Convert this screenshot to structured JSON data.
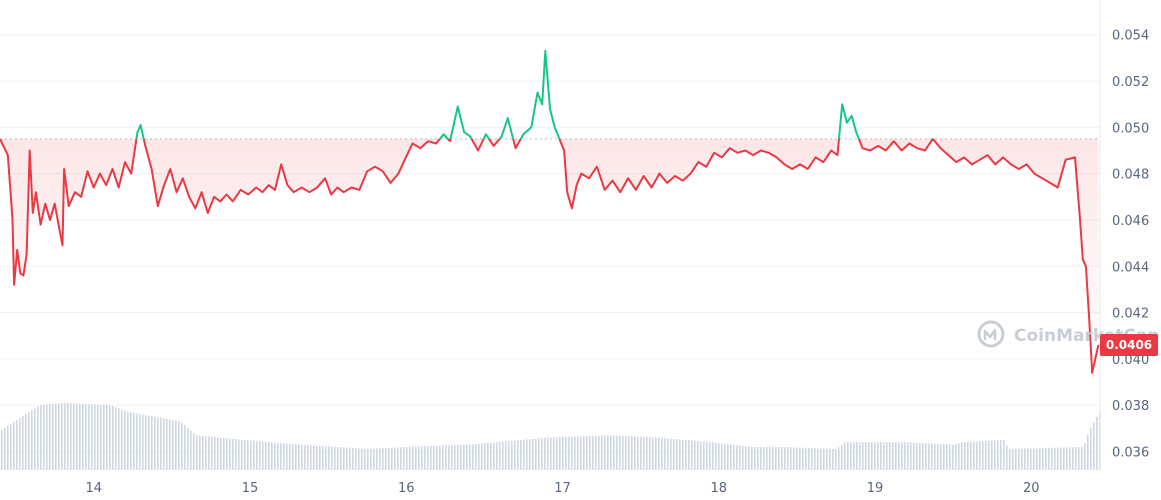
{
  "chart_data": {
    "type": "line",
    "title": "",
    "xlabel": "",
    "ylabel": "",
    "x_tick_labels": [
      "14",
      "15",
      "16",
      "17",
      "18",
      "19",
      "20"
    ],
    "y_tick_labels": [
      "0.054",
      "0.052",
      "0.050",
      "0.048",
      "0.046",
      "0.044",
      "0.042",
      "0.040",
      "0.038",
      "0.036"
    ],
    "ylim": [
      0.0352,
      0.0555
    ],
    "xlim": [
      13.4,
      20.44
    ],
    "reference_price": 0.0495,
    "current_price_label": "0.0406",
    "colors": {
      "below": "#ea3943",
      "above": "#16c784",
      "volume": "#cfd6e4",
      "grid": "#eff2f5"
    },
    "series": [
      {
        "values": [
          [
            13.4,
            0.0495
          ],
          [
            13.45,
            0.0488
          ],
          [
            13.47,
            0.047
          ],
          [
            13.48,
            0.046
          ],
          [
            13.49,
            0.0432
          ],
          [
            13.51,
            0.0447
          ],
          [
            13.53,
            0.0437
          ],
          [
            13.55,
            0.0436
          ],
          [
            13.57,
            0.0445
          ],
          [
            13.59,
            0.049
          ],
          [
            13.61,
            0.0463
          ],
          [
            13.63,
            0.0472
          ],
          [
            13.66,
            0.0458
          ],
          [
            13.69,
            0.0467
          ],
          [
            13.72,
            0.046
          ],
          [
            13.75,
            0.0467
          ],
          [
            13.78,
            0.0456
          ],
          [
            13.8,
            0.0449
          ],
          [
            13.81,
            0.0482
          ],
          [
            13.84,
            0.0466
          ],
          [
            13.88,
            0.0472
          ],
          [
            13.92,
            0.047
          ],
          [
            13.96,
            0.0481
          ],
          [
            14.0,
            0.0474
          ],
          [
            14.04,
            0.048
          ],
          [
            14.08,
            0.0475
          ],
          [
            14.12,
            0.0482
          ],
          [
            14.16,
            0.0474
          ],
          [
            14.2,
            0.0485
          ],
          [
            14.24,
            0.048
          ],
          [
            14.28,
            0.0498
          ],
          [
            14.3,
            0.0501
          ],
          [
            14.33,
            0.0492
          ],
          [
            14.37,
            0.0482
          ],
          [
            14.41,
            0.0466
          ],
          [
            14.45,
            0.0475
          ],
          [
            14.49,
            0.0482
          ],
          [
            14.53,
            0.0472
          ],
          [
            14.57,
            0.0478
          ],
          [
            14.61,
            0.047
          ],
          [
            14.65,
            0.0465
          ],
          [
            14.69,
            0.0472
          ],
          [
            14.73,
            0.0463
          ],
          [
            14.77,
            0.047
          ],
          [
            14.81,
            0.0468
          ],
          [
            14.85,
            0.0471
          ],
          [
            14.89,
            0.0468
          ],
          [
            14.94,
            0.0473
          ],
          [
            14.99,
            0.0471
          ],
          [
            15.04,
            0.0474
          ],
          [
            15.08,
            0.0472
          ],
          [
            15.12,
            0.0475
          ],
          [
            15.16,
            0.0473
          ],
          [
            15.2,
            0.0484
          ],
          [
            15.24,
            0.0475
          ],
          [
            15.28,
            0.0472
          ],
          [
            15.33,
            0.0474
          ],
          [
            15.38,
            0.0472
          ],
          [
            15.43,
            0.0474
          ],
          [
            15.48,
            0.0478
          ],
          [
            15.52,
            0.0471
          ],
          [
            15.56,
            0.0474
          ],
          [
            15.6,
            0.0472
          ],
          [
            15.65,
            0.0474
          ],
          [
            15.7,
            0.0473
          ],
          [
            15.75,
            0.0481
          ],
          [
            15.8,
            0.0483
          ],
          [
            15.85,
            0.0481
          ],
          [
            15.9,
            0.0476
          ],
          [
            15.95,
            0.048
          ],
          [
            15.99,
            0.0486
          ],
          [
            16.04,
            0.0493
          ],
          [
            16.09,
            0.0491
          ],
          [
            16.14,
            0.0494
          ],
          [
            16.19,
            0.0493
          ],
          [
            16.24,
            0.0497
          ],
          [
            16.28,
            0.0494
          ],
          [
            16.33,
            0.0509
          ],
          [
            16.37,
            0.0498
          ],
          [
            16.41,
            0.0496
          ],
          [
            16.46,
            0.049
          ],
          [
            16.51,
            0.0497
          ],
          [
            16.56,
            0.0492
          ],
          [
            16.61,
            0.0496
          ],
          [
            16.65,
            0.0504
          ],
          [
            16.7,
            0.0491
          ],
          [
            16.75,
            0.0497
          ],
          [
            16.8,
            0.05
          ],
          [
            16.84,
            0.0515
          ],
          [
            16.87,
            0.051
          ],
          [
            16.89,
            0.0533
          ],
          [
            16.92,
            0.0508
          ],
          [
            16.95,
            0.05
          ],
          [
            16.98,
            0.0495
          ],
          [
            17.01,
            0.049
          ],
          [
            17.03,
            0.0472
          ],
          [
            17.06,
            0.0465
          ],
          [
            17.09,
            0.0475
          ],
          [
            17.12,
            0.048
          ],
          [
            17.17,
            0.0478
          ],
          [
            17.22,
            0.0483
          ],
          [
            17.27,
            0.0473
          ],
          [
            17.32,
            0.0477
          ],
          [
            17.37,
            0.0472
          ],
          [
            17.42,
            0.0478
          ],
          [
            17.47,
            0.0473
          ],
          [
            17.52,
            0.0479
          ],
          [
            17.57,
            0.0474
          ],
          [
            17.62,
            0.048
          ],
          [
            17.67,
            0.0476
          ],
          [
            17.72,
            0.0479
          ],
          [
            17.77,
            0.0477
          ],
          [
            17.82,
            0.048
          ],
          [
            17.87,
            0.0485
          ],
          [
            17.92,
            0.0483
          ],
          [
            17.97,
            0.0489
          ],
          [
            18.02,
            0.0487
          ],
          [
            18.07,
            0.0491
          ],
          [
            18.12,
            0.0489
          ],
          [
            18.17,
            0.049
          ],
          [
            18.22,
            0.0488
          ],
          [
            18.27,
            0.049
          ],
          [
            18.32,
            0.0489
          ],
          [
            18.37,
            0.0487
          ],
          [
            18.42,
            0.0484
          ],
          [
            18.47,
            0.0482
          ],
          [
            18.52,
            0.0484
          ],
          [
            18.57,
            0.0482
          ],
          [
            18.62,
            0.0487
          ],
          [
            18.67,
            0.0485
          ],
          [
            18.72,
            0.049
          ],
          [
            18.76,
            0.0488
          ],
          [
            18.79,
            0.051
          ],
          [
            18.82,
            0.0502
          ],
          [
            18.85,
            0.0505
          ],
          [
            18.88,
            0.0498
          ],
          [
            18.92,
            0.0491
          ],
          [
            18.97,
            0.049
          ],
          [
            19.02,
            0.0492
          ],
          [
            19.07,
            0.049
          ],
          [
            19.12,
            0.0494
          ],
          [
            19.17,
            0.049
          ],
          [
            19.22,
            0.0493
          ],
          [
            19.27,
            0.0491
          ],
          [
            19.32,
            0.049
          ],
          [
            19.37,
            0.0495
          ],
          [
            19.42,
            0.0491
          ],
          [
            19.47,
            0.0488
          ],
          [
            19.52,
            0.0485
          ],
          [
            19.57,
            0.0487
          ],
          [
            19.62,
            0.0484
          ],
          [
            19.67,
            0.0486
          ],
          [
            19.72,
            0.0488
          ],
          [
            19.77,
            0.0484
          ],
          [
            19.82,
            0.0487
          ],
          [
            19.87,
            0.0484
          ],
          [
            19.92,
            0.0482
          ],
          [
            19.97,
            0.0484
          ],
          [
            20.02,
            0.048
          ],
          [
            20.07,
            0.0478
          ],
          [
            20.12,
            0.0476
          ],
          [
            20.17,
            0.0474
          ],
          [
            20.22,
            0.0486
          ],
          [
            20.28,
            0.0487
          ],
          [
            20.31,
            0.0462
          ],
          [
            20.33,
            0.0443
          ],
          [
            20.35,
            0.044
          ],
          [
            20.37,
            0.0418
          ],
          [
            20.39,
            0.0394
          ],
          [
            20.41,
            0.04
          ],
          [
            20.43,
            0.0406
          ]
        ]
      },
      {
        "type": "bar",
        "values": [
          [
            13.4,
            0.0369
          ],
          [
            13.65,
            0.038
          ],
          [
            13.8,
            0.0381
          ],
          [
            14.1,
            0.038
          ],
          [
            14.22,
            0.0377
          ],
          [
            14.55,
            0.0373
          ],
          [
            14.65,
            0.0367
          ],
          [
            14.95,
            0.0365
          ],
          [
            15.3,
            0.0363
          ],
          [
            15.55,
            0.0362
          ],
          [
            15.75,
            0.0361
          ],
          [
            16.0,
            0.0362
          ],
          [
            16.4,
            0.0363
          ],
          [
            16.9,
            0.0366
          ],
          [
            17.3,
            0.0367
          ],
          [
            17.6,
            0.0366
          ],
          [
            17.95,
            0.0364
          ],
          [
            18.2,
            0.0362
          ],
          [
            18.4,
            0.0362
          ],
          [
            18.75,
            0.0361
          ],
          [
            18.8,
            0.0364
          ],
          [
            19.2,
            0.0364
          ],
          [
            19.5,
            0.0363
          ],
          [
            19.55,
            0.0364
          ],
          [
            19.82,
            0.0365
          ],
          [
            19.85,
            0.0361
          ],
          [
            20.33,
            0.0362
          ],
          [
            20.36,
            0.0368
          ],
          [
            20.43,
            0.0377
          ]
        ]
      }
    ],
    "legend": "none",
    "grid": true
  },
  "watermark": {
    "icon": "coinmarketcap-logo-icon",
    "text": "CoinMarketCap"
  }
}
